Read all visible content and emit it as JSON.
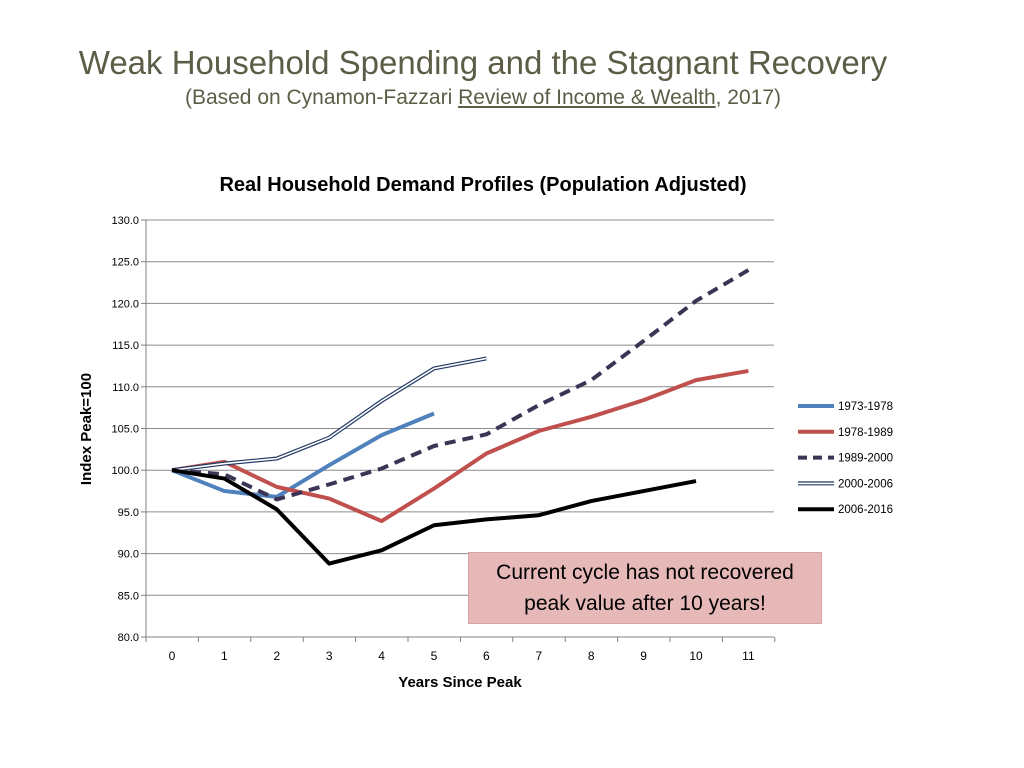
{
  "slide": {
    "title": "Weak Household Spending and the Stagnant Recovery",
    "subtitle_prefix": "(Based on Cynamon-Fazzari ",
    "subtitle_link": "Review of Income & Wealth",
    "subtitle_suffix": ", 2017)"
  },
  "callout": {
    "line1": "Current cycle has not recovered",
    "line2": "peak value after 10 years!"
  },
  "chart_data": {
    "type": "line",
    "title": "Real Household Demand Profiles (Population Adjusted)",
    "xlabel": "Years Since Peak",
    "ylabel": "Index Peak=100",
    "ylim": [
      80,
      130
    ],
    "yticks": [
      "80.0",
      "85.0",
      "90.0",
      "95.0",
      "100.0",
      "105.0",
      "110.0",
      "115.0",
      "120.0",
      "125.0",
      "130.0"
    ],
    "xticks": [
      "0",
      "1",
      "2",
      "3",
      "4",
      "5",
      "6",
      "7",
      "8",
      "9",
      "10",
      "11"
    ],
    "grid": "horizontal",
    "legend_position": "right",
    "series": [
      {
        "name": "1973-1978",
        "style": "solid",
        "color": "#4f81bd",
        "x": [
          0,
          1,
          2,
          3,
          4,
          5
        ],
        "values": [
          100.0,
          97.5,
          96.8,
          100.6,
          104.2,
          106.8
        ]
      },
      {
        "name": "1978-1989",
        "style": "solid",
        "color": "#c0504d",
        "x": [
          0,
          1,
          2,
          3,
          4,
          5,
          6,
          7,
          8,
          9,
          10,
          11
        ],
        "values": [
          100.0,
          101.0,
          98.0,
          96.6,
          93.9,
          97.8,
          102.0,
          104.7,
          106.4,
          108.4,
          110.8,
          111.9
        ]
      },
      {
        "name": "1989-2000",
        "style": "dashed",
        "color": "#3b3454",
        "x": [
          0,
          1,
          2,
          3,
          4,
          5,
          6,
          7,
          8,
          9,
          10,
          11
        ],
        "values": [
          100.0,
          99.5,
          96.5,
          98.3,
          100.2,
          102.9,
          104.3,
          107.8,
          110.8,
          115.5,
          120.3,
          124.0
        ]
      },
      {
        "name": "2000-2006",
        "style": "double",
        "color": "#1f3864",
        "x": [
          0,
          1,
          2,
          3,
          4,
          5,
          6
        ],
        "values": [
          100.0,
          100.8,
          101.4,
          103.9,
          108.3,
          112.2,
          113.4
        ]
      },
      {
        "name": "2006-2016",
        "style": "solid",
        "color": "#000000",
        "x": [
          0,
          1,
          2,
          3,
          4,
          5,
          6,
          7,
          8,
          9,
          10
        ],
        "values": [
          100.0,
          99.0,
          95.3,
          88.8,
          90.4,
          93.4,
          94.1,
          94.6,
          96.3,
          97.5,
          98.7
        ]
      }
    ]
  }
}
